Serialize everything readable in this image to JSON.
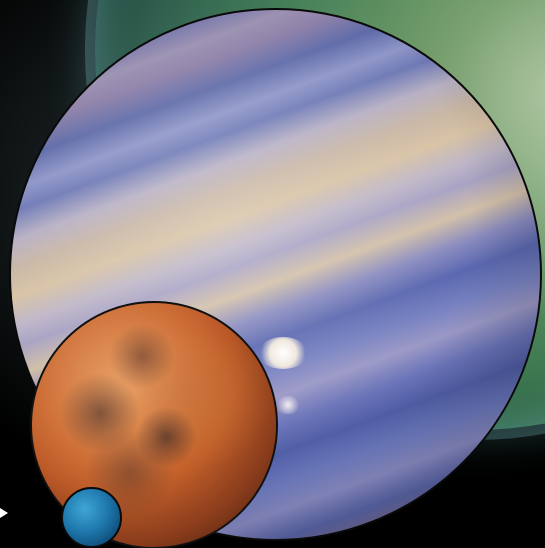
{
  "scene": {
    "description_free": true,
    "objects": [
      {
        "key": "background-planet",
        "color": "#6f9a68"
      },
      {
        "key": "gas-giant",
        "color": "#8f96c8"
      },
      {
        "key": "mars",
        "color": "#c8642c"
      },
      {
        "key": "blue-planet",
        "color": "#1f78ad"
      }
    ],
    "pointer_icon": "triangle-right-icon"
  }
}
